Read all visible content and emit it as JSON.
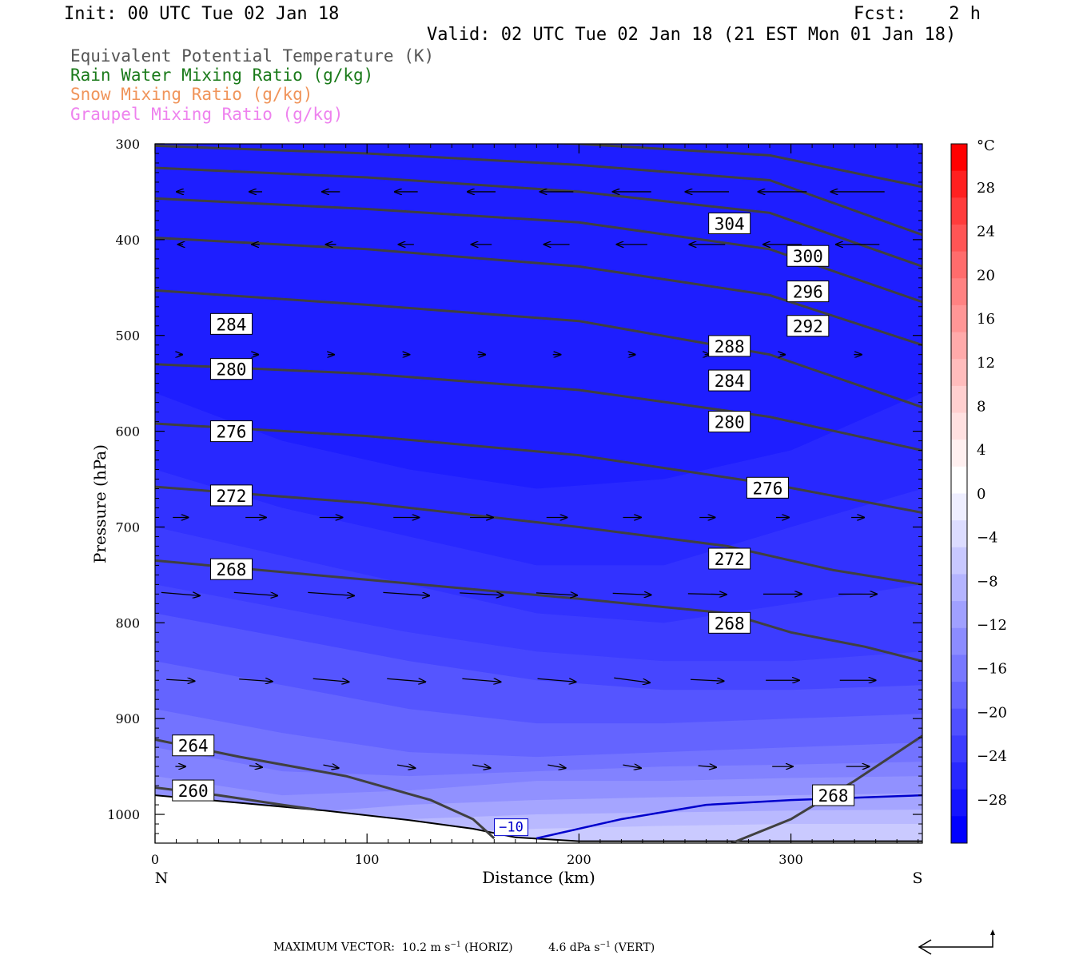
{
  "header": {
    "init": "Init: 00 UTC Tue 02 Jan 18",
    "fcst": "Fcst:    2 h",
    "valid": "Valid: 02 UTC Tue 02 Jan 18 (21 EST Mon 01 Jan 18)"
  },
  "legend": [
    {
      "label": "Equivalent Potential Temperature (K)",
      "color": "#555555"
    },
    {
      "label": "Rain Water Mixing Ratio (g/kg)",
      "color": "#1a7a1a"
    },
    {
      "label": "Snow Mixing Ratio (g/kg)",
      "color": "#f0945a"
    },
    {
      "label": "Graupel Mixing Ratio (g/kg)",
      "color": "#ee82ee"
    }
  ],
  "chart_data": {
    "type": "cross-section",
    "xlabel": "Distance (km)",
    "ylabel": "Pressure (hPa)",
    "xlim": [
      0,
      362
    ],
    "ylim": [
      1030,
      300
    ],
    "x_ticks": [
      0,
      100,
      200,
      300
    ],
    "y_ticks": [
      300,
      400,
      500,
      600,
      700,
      800,
      900,
      1000
    ],
    "x_end_labels": {
      "left": "N",
      "right": "S"
    },
    "colorbar": {
      "unit": "°C",
      "labels": [
        "28",
        "24",
        "20",
        "16",
        "12",
        "8",
        "4",
        "0",
        "−4",
        "−8",
        "−12",
        "−16",
        "−20",
        "−24",
        "−28"
      ],
      "colors_top_to_bottom": [
        "#ff0000",
        "#ff2020",
        "#ff3c3c",
        "#ff5555",
        "#ff6c6c",
        "#ff8282",
        "#ff9696",
        "#ffaaaa",
        "#ffbcbc",
        "#ffcfcf",
        "#ffe0e0",
        "#fff0f0",
        "#ffffff",
        "#eeeeff",
        "#dcdcff",
        "#c8c8ff",
        "#b4b4ff",
        "#a0a0ff",
        "#8c8cff",
        "#7878ff",
        "#6464ff",
        "#5050ff",
        "#3c3cff",
        "#2828ff",
        "#1414ff",
        "#0000ff"
      ]
    },
    "temperature_contour": {
      "label": "−10",
      "color": "#0000cc"
    },
    "theta_e_contours": [
      {
        "value": 260,
        "label": "260",
        "pts": [
          [
            0,
            972
          ],
          [
            30,
            980
          ],
          [
            60,
            990
          ],
          [
            76,
            995
          ]
        ]
      },
      {
        "value": 264,
        "label": "264",
        "pts": [
          [
            0,
            922
          ],
          [
            40,
            940
          ],
          [
            90,
            960
          ],
          [
            130,
            985
          ],
          [
            150,
            1005
          ],
          [
            160,
            1025
          ]
        ]
      },
      {
        "value": 268,
        "label": "268",
        "pts": [
          [
            0,
            735
          ],
          [
            100,
            755
          ],
          [
            200,
            775
          ],
          [
            270,
            790
          ],
          [
            300,
            810
          ],
          [
            335,
            825
          ],
          [
            362,
            840
          ]
        ],
        "label2": "268",
        "pts2": [
          [
            272,
            1030
          ],
          [
            300,
            1005
          ],
          [
            330,
            965
          ],
          [
            362,
            918
          ]
        ]
      },
      {
        "value": 272,
        "label": "272",
        "pts": [
          [
            0,
            658
          ],
          [
            100,
            675
          ],
          [
            200,
            700
          ],
          [
            270,
            720
          ],
          [
            320,
            745
          ],
          [
            362,
            760
          ]
        ]
      },
      {
        "value": 276,
        "label": "276",
        "pts": [
          [
            0,
            592
          ],
          [
            100,
            605
          ],
          [
            200,
            625
          ],
          [
            290,
            655
          ],
          [
            362,
            685
          ]
        ]
      },
      {
        "value": 280,
        "label": "280",
        "pts": [
          [
            0,
            530
          ],
          [
            100,
            540
          ],
          [
            200,
            557
          ],
          [
            290,
            585
          ],
          [
            362,
            620
          ]
        ]
      },
      {
        "value": 284,
        "label": "284",
        "pts": [
          [
            0,
            453
          ],
          [
            100,
            468
          ],
          [
            200,
            485
          ],
          [
            290,
            520
          ],
          [
            362,
            575
          ]
        ]
      },
      {
        "value": 288,
        "label": "288",
        "pts": [
          [
            0,
            398
          ],
          [
            100,
            410
          ],
          [
            200,
            428
          ],
          [
            290,
            458
          ],
          [
            362,
            510
          ]
        ]
      },
      {
        "value": 292,
        "label": "292",
        "pts": [
          [
            0,
            357
          ],
          [
            100,
            368
          ],
          [
            200,
            382
          ],
          [
            290,
            410
          ],
          [
            362,
            465
          ]
        ]
      },
      {
        "value": 296,
        "label": "296",
        "pts": [
          [
            0,
            325
          ],
          [
            100,
            335
          ],
          [
            200,
            350
          ],
          [
            290,
            372
          ],
          [
            362,
            428
          ]
        ]
      },
      {
        "value": 300,
        "label": "300",
        "pts": [
          [
            0,
            302
          ],
          [
            100,
            310
          ],
          [
            200,
            322
          ],
          [
            290,
            338
          ],
          [
            362,
            395
          ]
        ]
      },
      {
        "value": 304,
        "label": "304",
        "pts": [
          [
            0,
            285
          ],
          [
            100,
            292
          ],
          [
            200,
            300
          ],
          [
            290,
            312
          ],
          [
            362,
            345
          ]
        ]
      }
    ],
    "theta_e_label_positions": [
      {
        "label": "284",
        "x": 36,
        "p": 488
      },
      {
        "label": "280",
        "x": 36,
        "p": 535
      },
      {
        "label": "276",
        "x": 36,
        "p": 600
      },
      {
        "label": "272",
        "x": 36,
        "p": 667
      },
      {
        "label": "268",
        "x": 36,
        "p": 744
      },
      {
        "label": "264",
        "x": 18,
        "p": 928
      },
      {
        "label": "260",
        "x": 18,
        "p": 975
      },
      {
        "label": "304",
        "x": 271,
        "p": 383
      },
      {
        "label": "300",
        "x": 308,
        "p": 417
      },
      {
        "label": "296",
        "x": 308,
        "p": 454
      },
      {
        "label": "292",
        "x": 308,
        "p": 490
      },
      {
        "label": "288",
        "x": 271,
        "p": 511
      },
      {
        "label": "284",
        "x": 271,
        "p": 547
      },
      {
        "label": "280",
        "x": 271,
        "p": 590
      },
      {
        "label": "276",
        "x": 289,
        "p": 659
      },
      {
        "label": "272",
        "x": 271,
        "p": 733
      },
      {
        "label": "268",
        "x": 271,
        "p": 800
      },
      {
        "label": "268",
        "x": 320,
        "p": 980
      }
    ],
    "footer": {
      "prefix": "MAXIMUM VECTOR:",
      "horiz_value": "10.2 m s",
      "horiz_exp": "−1",
      "horiz_suffix": " (HORIZ)",
      "vert_value": "4.6 dPa s",
      "vert_exp": "−1",
      "vert_suffix": " (VERT)"
    }
  }
}
